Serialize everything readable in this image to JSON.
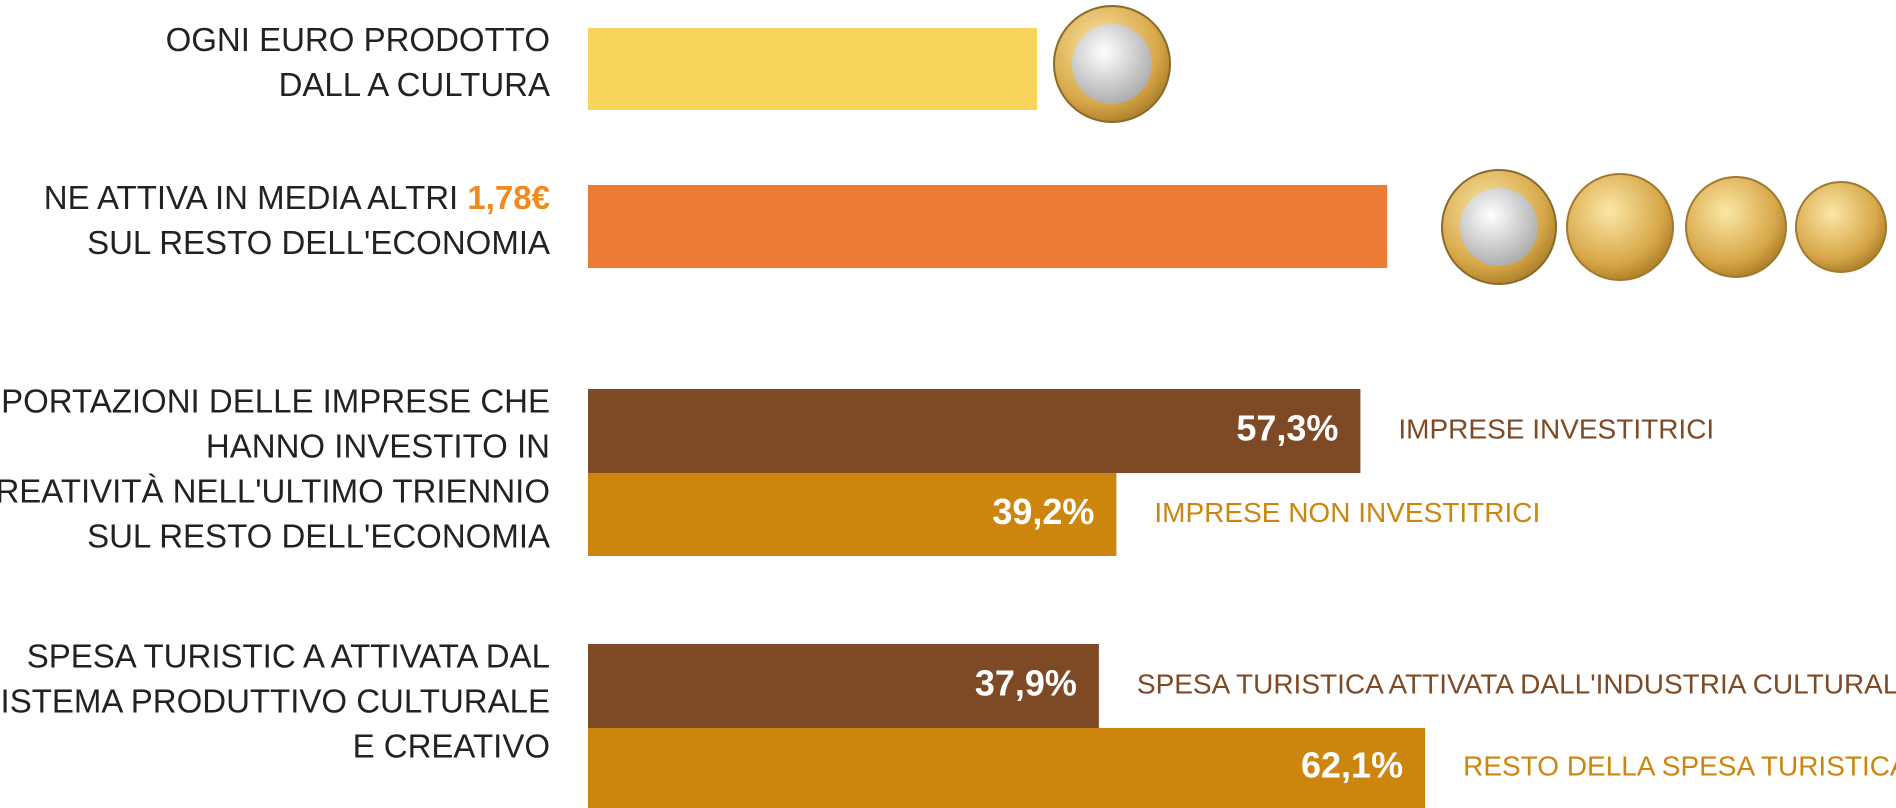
{
  "euro": {
    "color_unit": "#f8d55a",
    "color_extra": "#ec7b33",
    "highlight_color": "#f08a1c",
    "rows": [
      {
        "lines": [
          "OGNI EURO PRODOTTO",
          "DALL A CULTURA"
        ],
        "value": 1
      },
      {
        "lines": [
          "NE ATTIVA IN MEDIA ALTRI ",
          "SUL RESTO DELL'ECONOMIA"
        ],
        "highlight": "1,78€",
        "value": 1.78
      }
    ]
  },
  "groups": [
    {
      "lines": [
        "ESPORTAZIONI DELLE IMPRESE CHE",
        "HANNO INVESTITO IN",
        "CREATIVITÀ NELL'ULTIMO TRIENNIO",
        "SUL RESTO DELL'ECONOMIA"
      ],
      "series": [
        {
          "name": "IMPRESE INVESTITRICI",
          "value": 57.3,
          "value_label": "57,3%",
          "color": "#7e4a26"
        },
        {
          "name": "IMPRESE NON INVESTITRICI",
          "value": 39.2,
          "value_label": "39,2%",
          "color": "#cc860d"
        }
      ]
    },
    {
      "lines": [
        "SPESA TURISTIC A ATTIVATA DAL",
        "SISTEMA PRODUTTIVO CULTURALE",
        "E CREATIVO"
      ],
      "series": [
        {
          "name": "SPESA TURISTICA ATTIVATA DALL'INDUSTRIA CULTURALE",
          "value": 37.9,
          "value_label": "37,9%",
          "color": "#7e4a26"
        },
        {
          "name": "RESTO DELLA SPESA TURISTICA",
          "value": 62.1,
          "value_label": "62,1%",
          "color": "#cc860d"
        }
      ]
    }
  ]
}
